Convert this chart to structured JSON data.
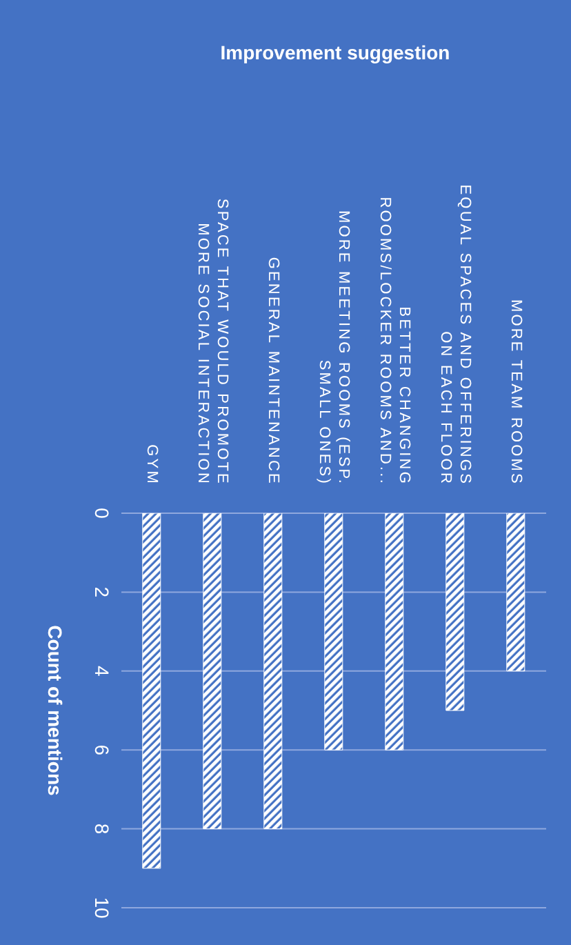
{
  "chart_data": {
    "type": "bar",
    "title": "Improvement suggestion",
    "ylabel": "Count of mentions",
    "categories": [
      "GYM",
      "SPACE THAT WOULD PROMOTE MORE SOCIAL INTERACTION",
      "GENERAL MAINTENANCE",
      "MORE MEETING ROOMS (ESP. SMALL ONES)",
      "BETTER CHANGING ROOMS/LOCKER ROOMS AND...",
      "EQUAL SPACES AND OFFERINGS ON EACH FLOOR",
      "MORE TEAM ROOMS"
    ],
    "values": [
      9,
      8,
      8,
      6,
      6,
      5,
      4
    ],
    "color": "#ffffff",
    "ylim": [
      10,
      0
    ],
    "yticks": [
      0,
      2,
      4,
      6,
      8,
      10
    ],
    "grid": "y"
  }
}
